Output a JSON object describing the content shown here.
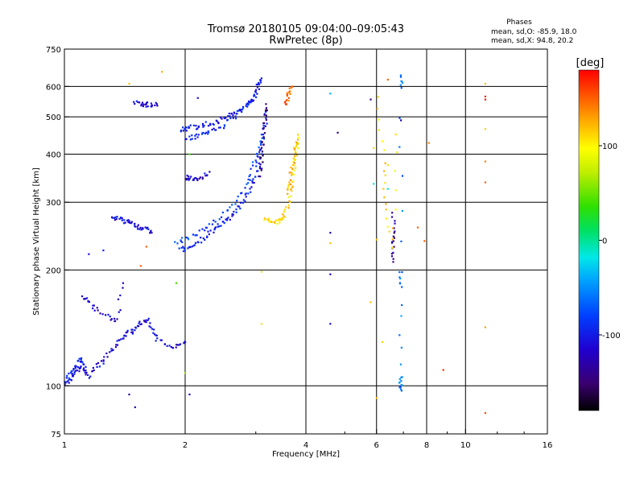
{
  "title": "Tromsø 20180105 09:04:00–09:05:43",
  "subtitle": "RwPretec (8p)",
  "phase_info": {
    "heading": "Phases",
    "line_o": "mean, sd,O: -85.9, 18.0",
    "line_x": "mean, sd,X:  94.8, 20.2"
  },
  "colorbar": {
    "label": "[deg]",
    "ticks": [
      {
        "label": "100",
        "value": 100
      },
      {
        "label": "0",
        "value": 0
      },
      {
        "label": "-100",
        "value": -100
      }
    ],
    "range": [
      -180,
      180
    ]
  },
  "chart_data": {
    "type": "scatter",
    "xlabel": "Frequency [MHz]",
    "ylabel": "Stationary phase Virtual Height [km]",
    "xscale": "log",
    "yscale": "log",
    "xlim": [
      1,
      16
    ],
    "ylim": [
      75,
      750
    ],
    "xticks": [
      {
        "label": "1",
        "value": 1
      },
      {
        "label": "2",
        "value": 2
      },
      {
        "label": "4",
        "value": 4
      },
      {
        "label": "6",
        "value": 6
      },
      {
        "label": "8",
        "value": 8
      },
      {
        "label": "10",
        "value": 10
      },
      {
        "label": "16",
        "value": 16
      }
    ],
    "xgrid": [
      2,
      4,
      6,
      8,
      10
    ],
    "yticks": [
      {
        "label": "75",
        "value": 75
      },
      {
        "label": "100",
        "value": 100
      },
      {
        "label": "200",
        "value": 200
      },
      {
        "label": "300",
        "value": 300
      },
      {
        "label": "400",
        "value": 400
      },
      {
        "label": "500",
        "value": 500
      },
      {
        "label": "600",
        "value": 600
      },
      {
        "label": "750",
        "value": 750
      }
    ],
    "ygrid": [
      100,
      200,
      300,
      400,
      500,
      600
    ],
    "colormap": "rainbow",
    "color_variable": "phase [deg]",
    "traces": [
      {
        "points": [
          [
            1.0,
            100
          ],
          [
            1.03,
            104
          ],
          [
            1.06,
            108
          ],
          [
            1.09,
            112
          ],
          [
            1.12,
            110
          ],
          [
            1.15,
            106
          ],
          [
            1.2,
            112
          ],
          [
            1.25,
            116
          ],
          [
            1.3,
            122
          ],
          [
            1.35,
            128
          ],
          [
            1.4,
            134
          ],
          [
            1.45,
            138
          ],
          [
            1.5,
            140
          ],
          [
            1.55,
            145
          ],
          [
            1.6,
            150
          ],
          [
            1.65,
            140
          ],
          [
            1.7,
            132
          ],
          [
            1.8,
            128
          ],
          [
            1.9,
            127
          ],
          [
            2.0,
            130
          ]
        ],
        "phase": -115
      },
      {
        "points": [
          [
            1.0,
            102
          ],
          [
            1.02,
            106
          ],
          [
            1.05,
            110
          ],
          [
            1.08,
            115
          ],
          [
            1.1,
            118
          ],
          [
            1.13,
            112
          ]
        ],
        "phase": -95
      },
      {
        "points": [
          [
            1.32,
            270
          ],
          [
            1.36,
            272
          ],
          [
            1.4,
            270
          ],
          [
            1.45,
            266
          ],
          [
            1.5,
            262
          ],
          [
            1.55,
            258
          ],
          [
            1.6,
            255
          ],
          [
            1.65,
            250
          ]
        ],
        "phase": -110
      },
      {
        "points": [
          [
            1.1,
            170
          ],
          [
            1.15,
            165
          ],
          [
            1.2,
            158
          ],
          [
            1.3,
            150
          ],
          [
            1.35,
            148
          ],
          [
            1.4,
            185
          ]
        ],
        "phase": -120
      },
      {
        "points": [
          [
            1.5,
            545
          ],
          [
            1.55,
            540
          ],
          [
            1.6,
            538
          ],
          [
            1.65,
            540
          ],
          [
            1.7,
            540
          ]
        ],
        "phase": -115
      },
      {
        "points": [
          [
            1.95,
            460
          ],
          [
            2.0,
            465
          ],
          [
            2.1,
            470
          ],
          [
            2.2,
            475
          ],
          [
            2.3,
            480
          ],
          [
            2.4,
            488
          ],
          [
            2.5,
            495
          ],
          [
            2.6,
            505
          ],
          [
            2.7,
            518
          ],
          [
            2.8,
            530
          ],
          [
            2.9,
            548
          ],
          [
            3.0,
            575
          ],
          [
            3.05,
            605
          ],
          [
            3.1,
            630
          ]
        ],
        "phase": -105
      },
      {
        "points": [
          [
            2.0,
            440
          ],
          [
            2.1,
            445
          ],
          [
            2.2,
            450
          ],
          [
            2.3,
            458
          ],
          [
            2.45,
            470
          ],
          [
            2.6,
            490
          ],
          [
            2.75,
            515
          ],
          [
            2.9,
            545
          ],
          [
            3.0,
            580
          ]
        ],
        "phase": -95
      },
      {
        "points": [
          [
            1.95,
            225
          ],
          [
            2.0,
            228
          ],
          [
            2.1,
            232
          ],
          [
            2.2,
            240
          ],
          [
            2.3,
            250
          ],
          [
            2.4,
            258
          ],
          [
            2.5,
            266
          ],
          [
            2.6,
            276
          ],
          [
            2.7,
            290
          ],
          [
            2.8,
            305
          ],
          [
            2.9,
            325
          ],
          [
            3.0,
            350
          ],
          [
            3.05,
            380
          ],
          [
            3.1,
            420
          ],
          [
            3.15,
            470
          ],
          [
            3.2,
            520
          ]
        ],
        "phase": -100
      },
      {
        "points": [
          [
            1.9,
            235
          ],
          [
            2.0,
            240
          ],
          [
            2.15,
            250
          ],
          [
            2.3,
            262
          ],
          [
            2.5,
            280
          ],
          [
            2.7,
            305
          ],
          [
            2.85,
            335
          ],
          [
            2.95,
            370
          ],
          [
            3.05,
            410
          ],
          [
            3.1,
            450
          ]
        ],
        "phase": -80
      },
      {
        "points": [
          [
            3.05,
            350
          ],
          [
            3.1,
            380
          ],
          [
            3.12,
            420
          ],
          [
            3.14,
            460
          ],
          [
            3.16,
            500
          ],
          [
            3.18,
            540
          ]
        ],
        "phase": -150
      },
      {
        "points": [
          [
            3.15,
            270
          ],
          [
            3.25,
            268
          ],
          [
            3.35,
            266
          ],
          [
            3.45,
            270
          ],
          [
            3.55,
            280
          ],
          [
            3.62,
            300
          ],
          [
            3.67,
            330
          ],
          [
            3.72,
            360
          ],
          [
            3.76,
            390
          ],
          [
            3.8,
            420
          ],
          [
            3.82,
            450
          ]
        ],
        "phase": 110
      },
      {
        "points": [
          [
            3.6,
            320
          ],
          [
            3.65,
            340
          ],
          [
            3.7,
            370
          ],
          [
            3.75,
            400
          ],
          [
            3.78,
            430
          ]
        ],
        "phase": 125
      },
      {
        "points": [
          [
            3.55,
            540
          ],
          [
            3.6,
            560
          ],
          [
            3.65,
            580
          ],
          [
            3.7,
            600
          ]
        ],
        "phase": 150
      },
      {
        "points": [
          [
            2.0,
            350
          ],
          [
            2.05,
            345
          ],
          [
            2.1,
            345
          ],
          [
            2.2,
            350
          ],
          [
            2.3,
            360
          ]
        ],
        "phase": -120
      },
      {
        "points": [
          [
            6.9,
            640
          ],
          [
            6.9,
            600
          ],
          [
            6.9,
            200
          ],
          [
            6.9,
            180
          ],
          [
            6.9,
            105
          ],
          [
            6.9,
            100
          ],
          [
            6.9,
            98
          ]
        ],
        "phase": -60
      },
      {
        "points": [
          [
            6.6,
            280
          ],
          [
            6.6,
            250
          ],
          [
            6.6,
            230
          ],
          [
            6.6,
            210
          ]
        ],
        "phase": -145
      },
      {
        "points": [
          [
            6.0,
            570
          ],
          [
            6.3,
            380
          ],
          [
            6.3,
            300
          ],
          [
            6.6,
            230
          ],
          [
            6.7,
            450
          ]
        ],
        "phase": 110
      }
    ],
    "scatter_points": [
      {
        "x": 1.45,
        "y": 610,
        "phase": 120
      },
      {
        "x": 1.75,
        "y": 655,
        "phase": 125
      },
      {
        "x": 2.15,
        "y": 560,
        "phase": -110
      },
      {
        "x": 2.05,
        "y": 400,
        "phase": 40
      },
      {
        "x": 1.6,
        "y": 230,
        "phase": 150
      },
      {
        "x": 1.55,
        "y": 205,
        "phase": 150
      },
      {
        "x": 1.9,
        "y": 185,
        "phase": 40
      },
      {
        "x": 2.0,
        "y": 108,
        "phase": 60
      },
      {
        "x": 2.05,
        "y": 95,
        "phase": -115
      },
      {
        "x": 1.5,
        "y": 88,
        "phase": -130
      },
      {
        "x": 1.45,
        "y": 95,
        "phase": -140
      },
      {
        "x": 1.25,
        "y": 225,
        "phase": -100
      },
      {
        "x": 1.15,
        "y": 220,
        "phase": -110
      },
      {
        "x": 3.1,
        "y": 198,
        "phase": 110
      },
      {
        "x": 3.1,
        "y": 145,
        "phase": 110
      },
      {
        "x": 4.6,
        "y": 575,
        "phase": -40
      },
      {
        "x": 4.6,
        "y": 250,
        "phase": -120
      },
      {
        "x": 4.6,
        "y": 235,
        "phase": 120
      },
      {
        "x": 4.6,
        "y": 195,
        "phase": -120
      },
      {
        "x": 4.6,
        "y": 145,
        "phase": -110
      },
      {
        "x": 4.8,
        "y": 455,
        "phase": -150
      },
      {
        "x": 5.8,
        "y": 555,
        "phase": -150
      },
      {
        "x": 5.9,
        "y": 415,
        "phase": 110
      },
      {
        "x": 5.9,
        "y": 335,
        "phase": -20
      },
      {
        "x": 6.0,
        "y": 240,
        "phase": 120
      },
      {
        "x": 5.8,
        "y": 165,
        "phase": 120
      },
      {
        "x": 6.2,
        "y": 130,
        "phase": 115
      },
      {
        "x": 6.0,
        "y": 93,
        "phase": 120
      },
      {
        "x": 6.4,
        "y": 625,
        "phase": 150
      },
      {
        "x": 6.4,
        "y": 375,
        "phase": 110
      },
      {
        "x": 6.4,
        "y": 325,
        "phase": -10
      },
      {
        "x": 6.9,
        "y": 490,
        "phase": -130
      },
      {
        "x": 7.6,
        "y": 258,
        "phase": 150
      },
      {
        "x": 7.9,
        "y": 238,
        "phase": 150
      },
      {
        "x": 8.1,
        "y": 428,
        "phase": 140
      },
      {
        "x": 8.8,
        "y": 110,
        "phase": 165
      },
      {
        "x": 11.2,
        "y": 610,
        "phase": 120
      },
      {
        "x": 11.2,
        "y": 565,
        "phase": 170
      },
      {
        "x": 11.2,
        "y": 555,
        "phase": 175
      },
      {
        "x": 11.2,
        "y": 465,
        "phase": 115
      },
      {
        "x": 11.2,
        "y": 383,
        "phase": 140
      },
      {
        "x": 11.2,
        "y": 338,
        "phase": 150
      },
      {
        "x": 11.2,
        "y": 142,
        "phase": 130
      },
      {
        "x": 11.2,
        "y": 85,
        "phase": 155
      }
    ]
  }
}
